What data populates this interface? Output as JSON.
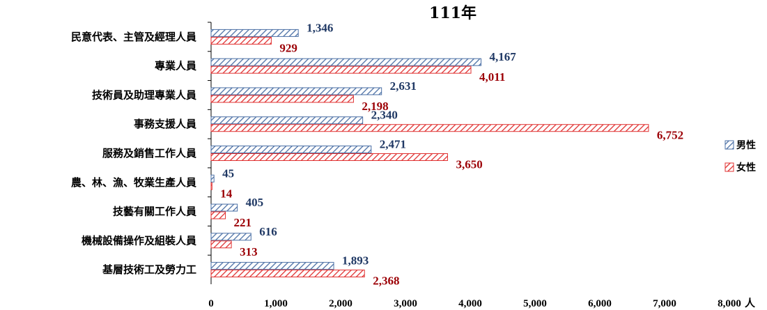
{
  "chart_data": {
    "type": "bar",
    "orientation": "horizontal",
    "title": "111年",
    "categories": [
      "民意代表、主管及經理人員",
      "專業人員",
      "技術員及助理專業人員",
      "事務支援人員",
      "服務及銷售工作人員",
      "農、林、漁、牧業生產人員",
      "技藝有關工作人員",
      "機械設備操作及組裝人員",
      "基層技術工及勞力工"
    ],
    "series": [
      {
        "name": "男性",
        "color": "#4a6fa5",
        "label_color": "#1f3864",
        "values": [
          1346,
          4167,
          2631,
          2340,
          2471,
          45,
          405,
          616,
          1893
        ],
        "labels": [
          "1,346",
          "4,167",
          "2,631",
          "2,340",
          "2,471",
          "45",
          "405",
          "616",
          "1,893"
        ]
      },
      {
        "name": "女性",
        "color": "#e03030",
        "label_color": "#9c0006",
        "values": [
          929,
          4011,
          2198,
          6752,
          3650,
          14,
          221,
          313,
          2368
        ],
        "labels": [
          "929",
          "4,011",
          "2,198",
          "6,752",
          "3,650",
          "14",
          "221",
          "313",
          "2,368"
        ]
      }
    ],
    "xlim": [
      0,
      8000
    ],
    "x_ticks": [
      "0",
      "1,000",
      "2,000",
      "3,000",
      "4,000",
      "5,000",
      "6,000",
      "7,000",
      "8,000"
    ],
    "x_unit": "人",
    "legend_position": "right",
    "grid": false
  }
}
